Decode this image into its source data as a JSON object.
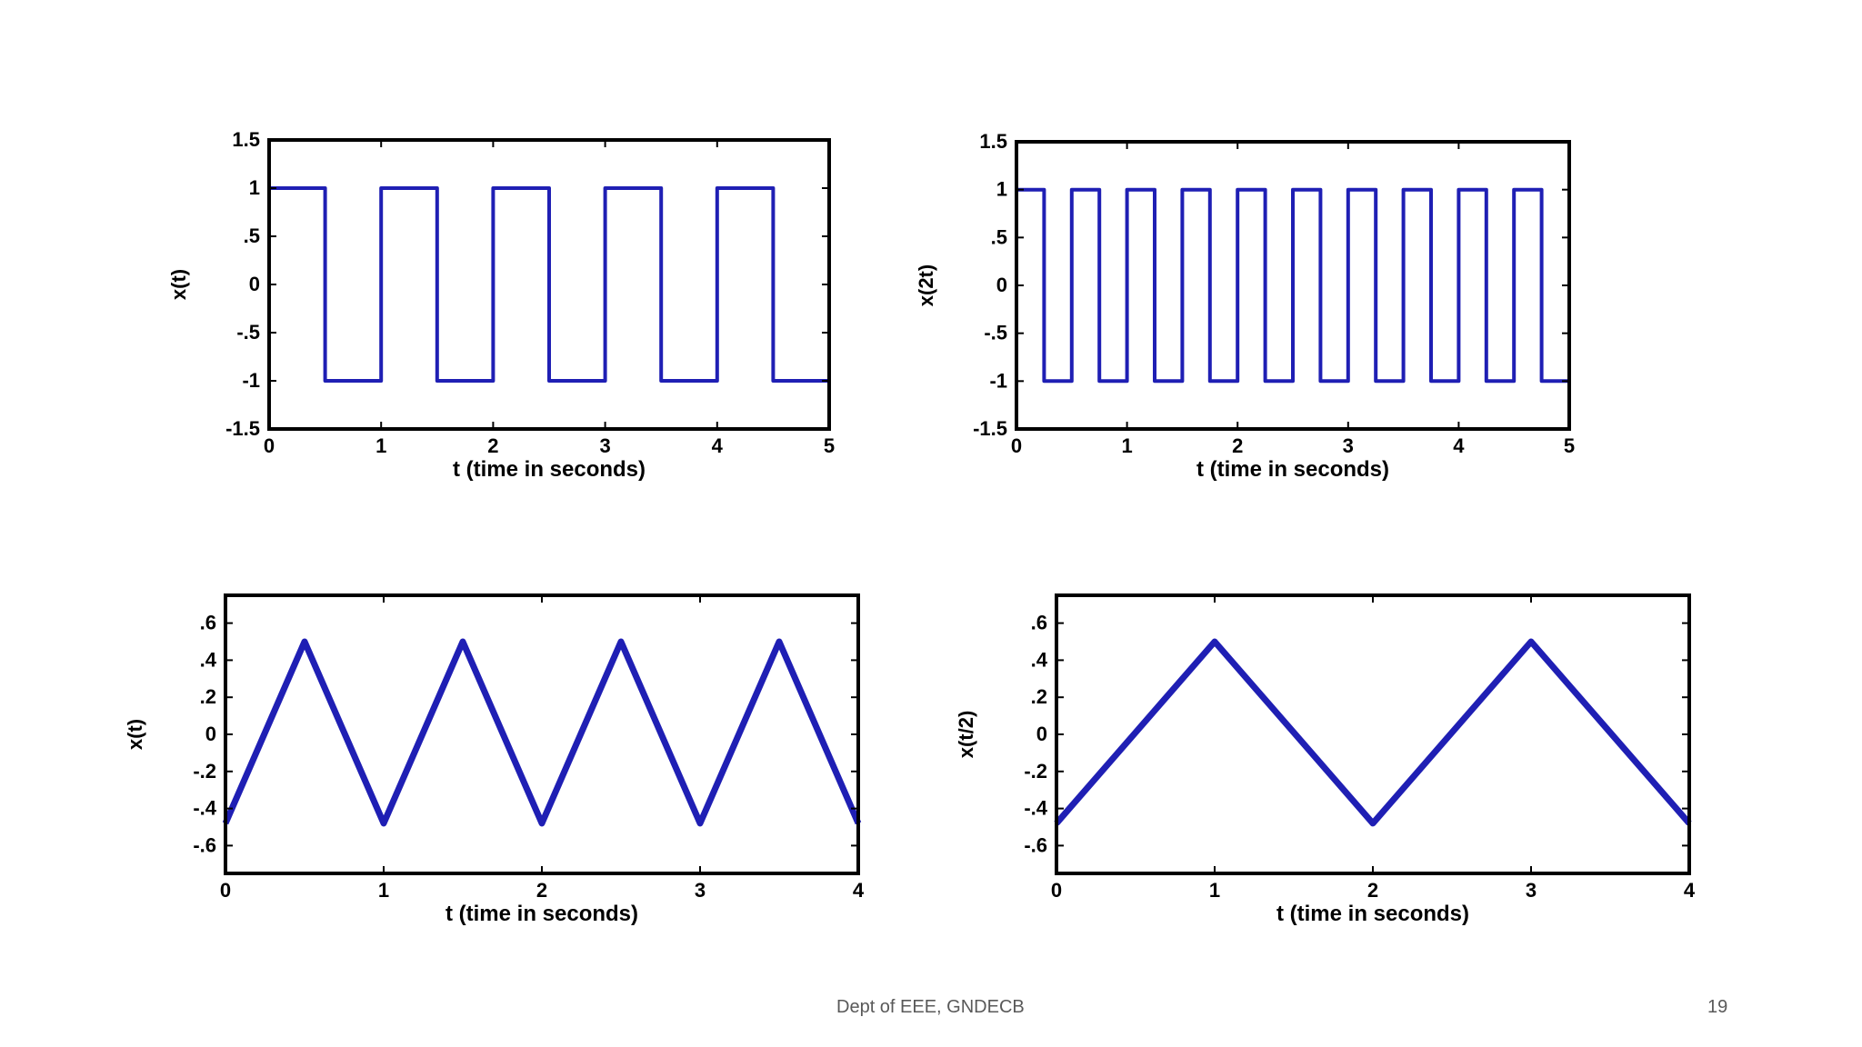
{
  "footer": {
    "dept": "Dept of EEE, GNDECB",
    "page_number": "19"
  },
  "colors": {
    "line": "#1f1fb4",
    "axes": "#000000"
  },
  "chart_data": [
    {
      "type": "line",
      "ylabel": "x(t)",
      "xlabel": "t (time in seconds)",
      "xlim": [
        0,
        5
      ],
      "ylim": [
        -1.5,
        1.5
      ],
      "xticks": [
        0,
        1,
        2,
        3,
        4,
        5
      ],
      "yticks": [
        1.5,
        1,
        0.5,
        0,
        -0.5,
        -1,
        -1.5
      ],
      "x": [
        0,
        0.5,
        0.5,
        1,
        1,
        1.5,
        1.5,
        2,
        2,
        2.5,
        2.5,
        3,
        3,
        3.5,
        3.5,
        4,
        4,
        4.5,
        4.5,
        5
      ],
      "y": [
        1,
        1,
        -1,
        -1,
        1,
        1,
        -1,
        -1,
        1,
        1,
        -1,
        -1,
        1,
        1,
        -1,
        -1,
        1,
        1,
        -1,
        -1
      ]
    },
    {
      "type": "line",
      "ylabel": "x(2t)",
      "xlabel": "t (time in seconds)",
      "xlim": [
        0,
        5
      ],
      "ylim": [
        -1.5,
        1.5
      ],
      "xticks": [
        0,
        1,
        2,
        3,
        4,
        5
      ],
      "yticks": [
        1.5,
        1,
        0.5,
        0,
        -0.5,
        -1,
        -1.5
      ],
      "x": [
        0,
        0.25,
        0.25,
        0.5,
        0.5,
        0.75,
        0.75,
        1,
        1,
        1.25,
        1.25,
        1.5,
        1.5,
        1.75,
        1.75,
        2,
        2,
        2.25,
        2.25,
        2.5,
        2.5,
        2.75,
        2.75,
        3,
        3,
        3.25,
        3.25,
        3.5,
        3.5,
        3.75,
        3.75,
        4,
        4,
        4.25,
        4.25,
        4.5,
        4.5,
        4.75,
        4.75,
        5
      ],
      "y": [
        1,
        1,
        -1,
        -1,
        1,
        1,
        -1,
        -1,
        1,
        1,
        -1,
        -1,
        1,
        1,
        -1,
        -1,
        1,
        1,
        -1,
        -1,
        1,
        1,
        -1,
        -1,
        1,
        1,
        -1,
        -1,
        1,
        1,
        -1,
        -1,
        1,
        1,
        -1,
        -1,
        1,
        1,
        -1,
        -1
      ]
    },
    {
      "type": "line",
      "ylabel": "x(t)",
      "xlabel": "t (time in seconds)",
      "xlim": [
        0,
        4
      ],
      "ylim": [
        -0.75,
        0.75
      ],
      "xticks": [
        0,
        1,
        2,
        3,
        4
      ],
      "yticks": [
        0.6,
        0.4,
        0.2,
        0,
        -0.2,
        -0.4,
        -0.6
      ],
      "x": [
        0,
        0.5,
        1,
        1.5,
        2,
        2.5,
        3,
        3.5,
        4
      ],
      "y": [
        -0.48,
        0.5,
        -0.48,
        0.5,
        -0.48,
        0.5,
        -0.48,
        0.5,
        -0.48
      ]
    },
    {
      "type": "line",
      "ylabel": "x(t/2)",
      "xlabel": "t (time in seconds)",
      "xlim": [
        0,
        4
      ],
      "ylim": [
        -0.75,
        0.75
      ],
      "xticks": [
        0,
        1,
        2,
        3,
        4
      ],
      "yticks": [
        0.6,
        0.4,
        0.2,
        0,
        -0.2,
        -0.4,
        -0.6
      ],
      "x": [
        0,
        1,
        2,
        3,
        4
      ],
      "y": [
        -0.48,
        0.5,
        -0.48,
        0.5,
        -0.48
      ]
    }
  ]
}
